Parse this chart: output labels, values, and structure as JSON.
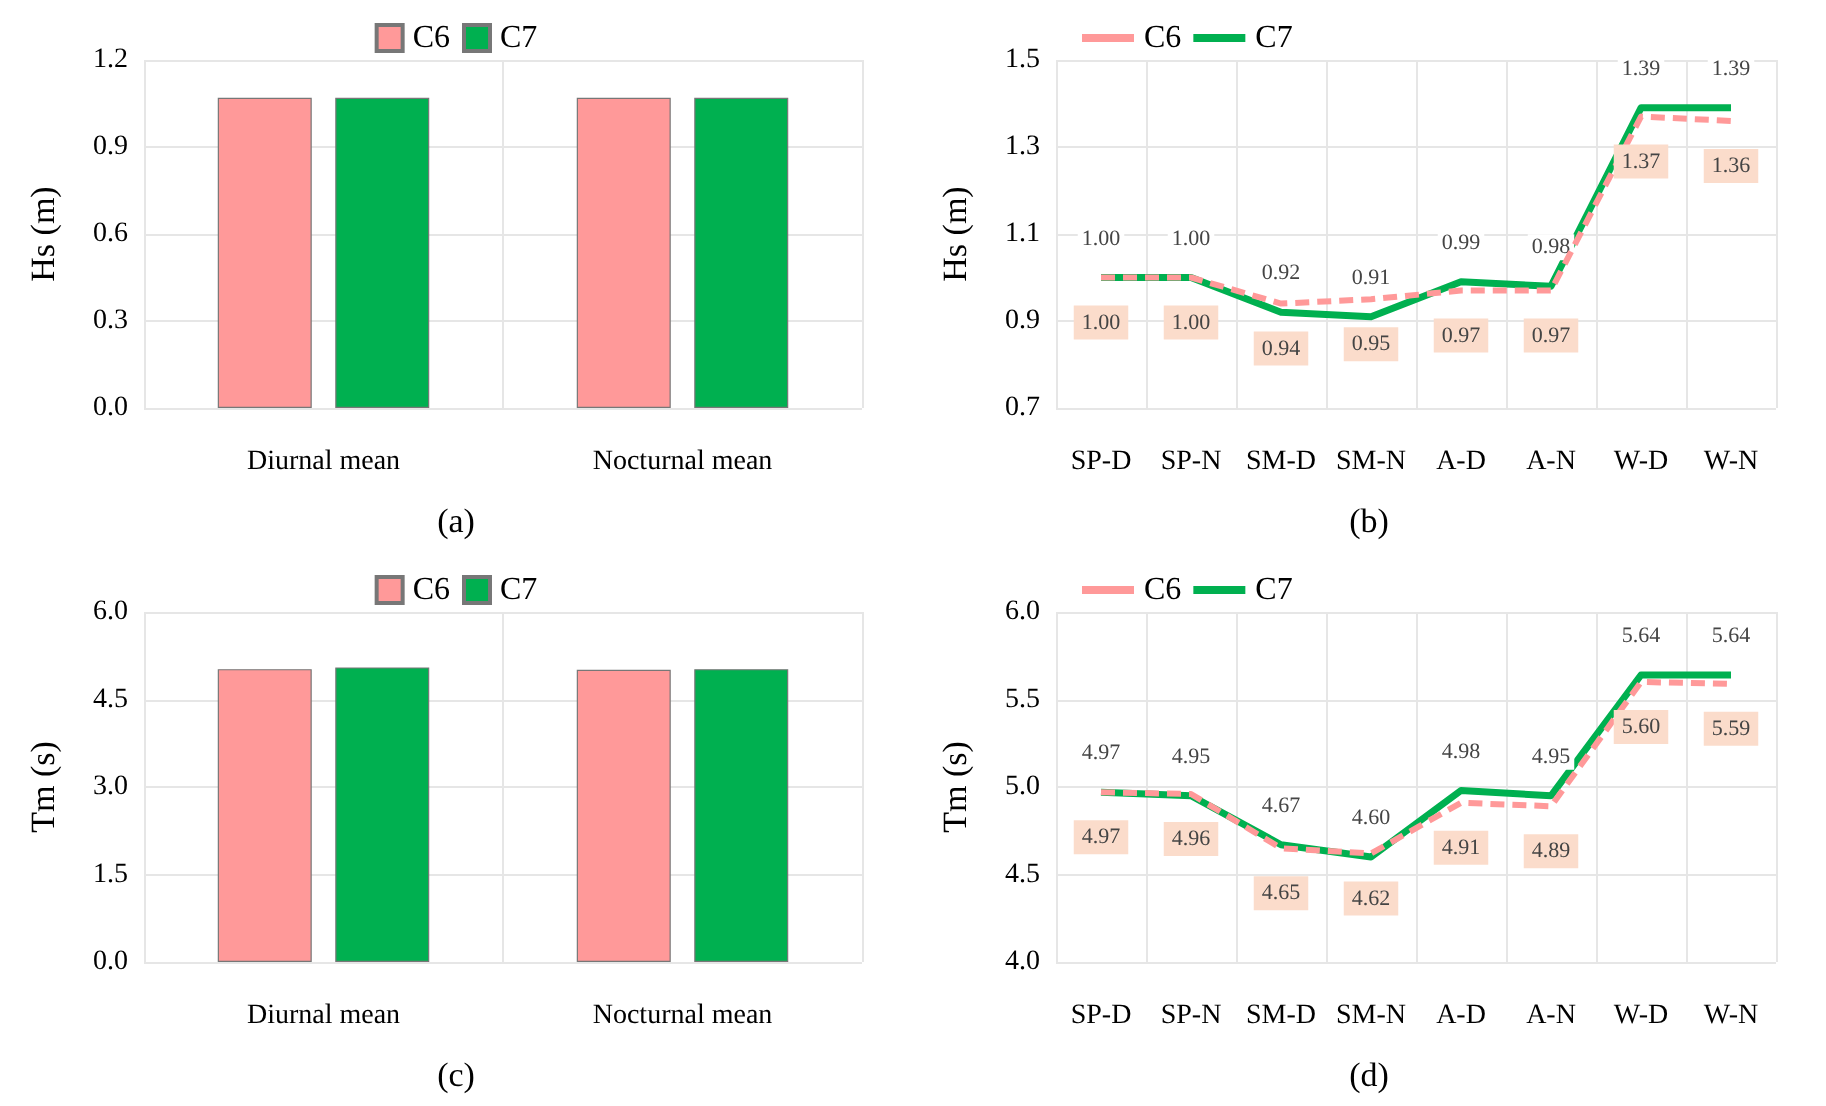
{
  "chart_data": [
    {
      "type": "bar",
      "title": "(a)",
      "ylabel": "Hs (m)",
      "categories": [
        "Diurnal mean",
        "Nocturnal mean"
      ],
      "series": [
        {
          "name": "C6",
          "color": "#ff9999",
          "values": [
            1.07,
            1.07
          ]
        },
        {
          "name": "C7",
          "color": "#00b050",
          "values": [
            1.07,
            1.07
          ]
        }
      ],
      "ylim": [
        0,
        1.2
      ],
      "yticks": [
        {
          "value": 0,
          "label": "0.0"
        },
        {
          "value": 0.3,
          "label": "0.3"
        },
        {
          "value": 0.6,
          "label": "0.6"
        },
        {
          "value": 0.9,
          "label": "0.9"
        },
        {
          "value": 1.2,
          "label": "1.2"
        }
      ],
      "grid": true,
      "legend": "top"
    },
    {
      "type": "line",
      "title": "(b)",
      "ylabel": "Hs (m)",
      "categories": [
        "SP-D",
        "SP-N",
        "SM-D",
        "SM-N",
        "A-D",
        "A-N",
        "W-D",
        "W-N"
      ],
      "series": [
        {
          "name": "C6",
          "color": "#ff9999",
          "line_style": "dashed",
          "values": [
            1.0,
            1.0,
            0.94,
            0.95,
            0.97,
            0.97,
            1.37,
            1.36
          ],
          "value_labels": [
            "1.00",
            "1.00",
            "0.94",
            "0.95",
            "0.97",
            "0.97",
            "1.37",
            "1.36"
          ]
        },
        {
          "name": "C7",
          "color": "#00b050",
          "line_style": "solid",
          "values": [
            1.0,
            1.0,
            0.92,
            0.91,
            0.99,
            0.98,
            1.39,
            1.39
          ],
          "value_labels": [
            "1.00",
            "1.00",
            "0.92",
            "0.91",
            "0.99",
            "0.98",
            "1.39",
            "1.39"
          ]
        }
      ],
      "ylim": [
        0.7,
        1.5
      ],
      "yticks": [
        {
          "value": 0.7,
          "label": "0.7"
        },
        {
          "value": 0.9,
          "label": "0.9"
        },
        {
          "value": 1.1,
          "label": "1.1"
        },
        {
          "value": 1.3,
          "label": "1.3"
        },
        {
          "value": 1.5,
          "label": "1.5"
        }
      ],
      "grid": true,
      "legend": "top left",
      "marker": "none"
    },
    {
      "type": "bar",
      "title": "(c)",
      "ylabel": "Tm (s)",
      "categories": [
        "Diurnal mean",
        "Nocturnal mean"
      ],
      "series": [
        {
          "name": "C6",
          "color": "#ff9999",
          "values": [
            5.02,
            5.01
          ]
        },
        {
          "name": "C7",
          "color": "#00b050",
          "values": [
            5.05,
            5.02
          ]
        }
      ],
      "ylim": [
        0,
        6
      ],
      "yticks": [
        {
          "value": 0,
          "label": "0.0"
        },
        {
          "value": 1.5,
          "label": "1.5"
        },
        {
          "value": 3,
          "label": "3.0"
        },
        {
          "value": 4.5,
          "label": "4.5"
        },
        {
          "value": 6,
          "label": "6.0"
        }
      ],
      "grid": true,
      "legend": "top"
    },
    {
      "type": "line",
      "title": "(d)",
      "ylabel": "Tm (s)",
      "categories": [
        "SP-D",
        "SP-N",
        "SM-D",
        "SM-N",
        "A-D",
        "A-N",
        "W-D",
        "W-N"
      ],
      "series": [
        {
          "name": "C6",
          "color": "#ff9999",
          "line_style": "dashed",
          "values": [
            4.97,
            4.96,
            4.65,
            4.62,
            4.91,
            4.89,
            5.6,
            5.59
          ],
          "value_labels": [
            "4.97",
            "4.96",
            "4.65",
            "4.62",
            "4.91",
            "4.89",
            "5.60",
            "5.59"
          ]
        },
        {
          "name": "C7",
          "color": "#00b050",
          "line_style": "solid",
          "values": [
            4.97,
            4.95,
            4.67,
            4.6,
            4.98,
            4.95,
            5.64,
            5.64
          ],
          "value_labels": [
            "4.97",
            "4.95",
            "4.67",
            "4.60",
            "4.98",
            "4.95",
            "5.64",
            "5.64"
          ]
        }
      ],
      "ylim": [
        4,
        6
      ],
      "yticks": [
        {
          "value": 4,
          "label": "4.0"
        },
        {
          "value": 4.5,
          "label": "4.5"
        },
        {
          "value": 5,
          "label": "5.0"
        },
        {
          "value": 5.5,
          "label": "5.5"
        },
        {
          "value": 6,
          "label": "6.0"
        }
      ],
      "grid": true,
      "legend": "top left",
      "marker": "none"
    }
  ]
}
